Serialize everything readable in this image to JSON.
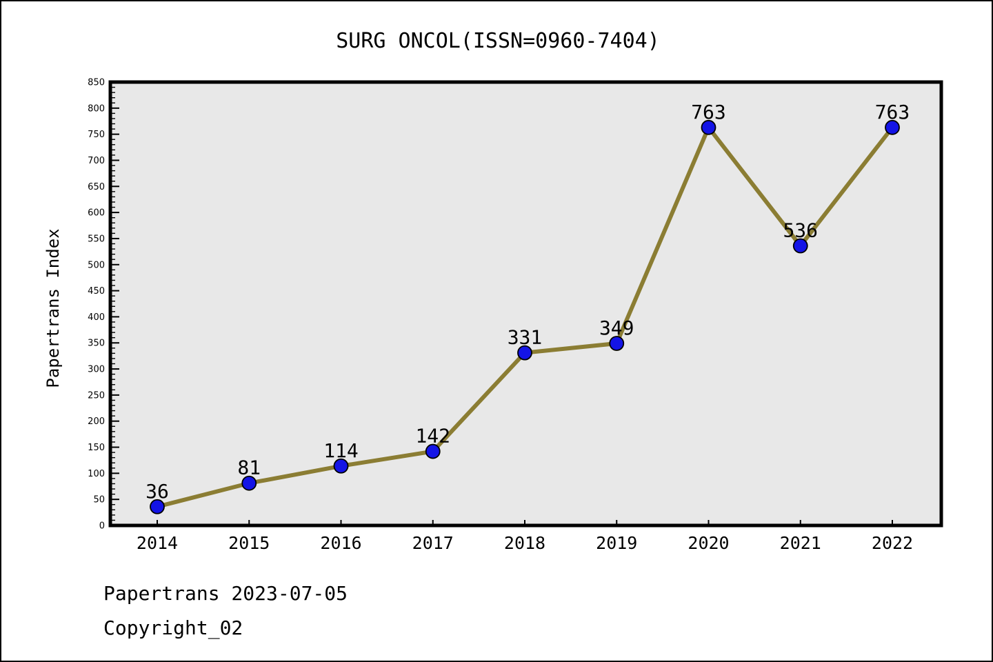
{
  "title": "SURG ONCOL(ISSN=0960-7404)",
  "ylabel": "Papertrans Index",
  "footer": {
    "line1": "Papertrans 2023-07-05",
    "line2": "Copyright_02"
  },
  "chart_data": {
    "type": "line",
    "title": "SURG ONCOL(ISSN=0960-7404)",
    "x": [
      "2014",
      "2015",
      "2016",
      "2017",
      "2018",
      "2019",
      "2020",
      "2021",
      "2022"
    ],
    "values": [
      36,
      81,
      114,
      142,
      331,
      349,
      763,
      536,
      763
    ],
    "point_labels": [
      "36",
      "81",
      "114",
      "142",
      "331",
      "349",
      "763",
      "536",
      "763"
    ],
    "xlabel": "",
    "ylabel": "Papertrans Index",
    "ylim": [
      0,
      850
    ],
    "y_tick_step": 50,
    "y_minor_tick_step": 10,
    "grid": false,
    "legend": null,
    "colors": {
      "line": "#8B7D33",
      "marker_fill": "#1414E6",
      "marker_edge": "#000000",
      "plot_background": "#E8E8E8",
      "axis": "#000000",
      "text": "#000000"
    }
  }
}
